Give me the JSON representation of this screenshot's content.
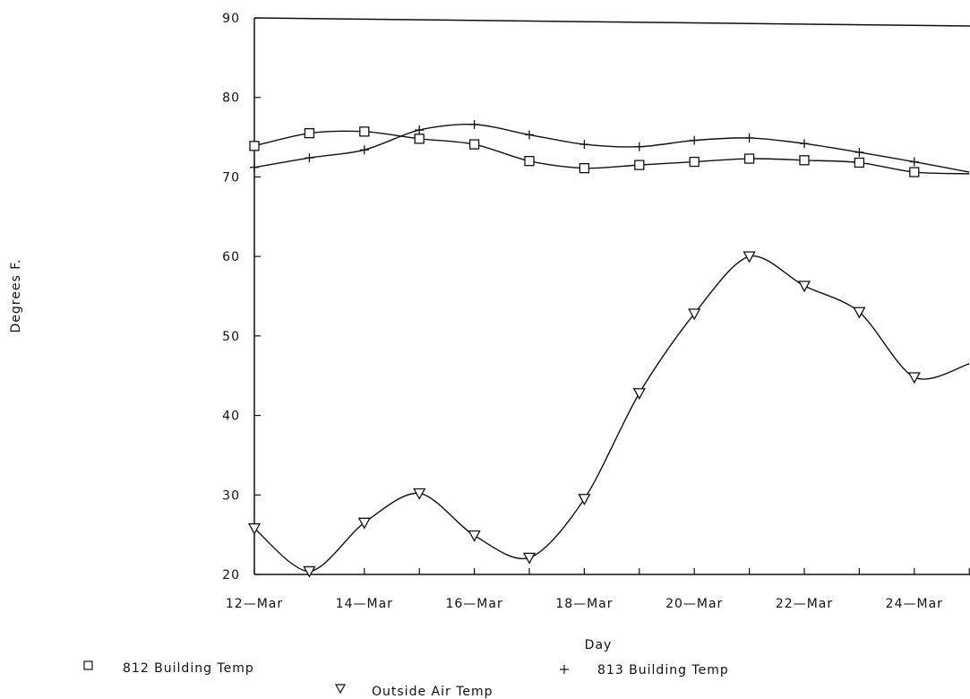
{
  "chart_data": {
    "type": "line",
    "xlabel": "Day",
    "ylabel": "Degrees F.",
    "ylim": [
      20,
      90
    ],
    "yticks": [
      "20",
      "30",
      "40",
      "50",
      "60",
      "70",
      "80",
      "90"
    ],
    "x": [
      "12-Mar",
      "13-Mar",
      "14-Mar",
      "15-Mar",
      "16-Mar",
      "17-Mar",
      "18-Mar",
      "19-Mar",
      "20-Mar",
      "21-Mar",
      "22-Mar",
      "23-Mar",
      "24-Mar",
      "25-Mar"
    ],
    "xtick_labels": [
      "12—Mar",
      "14—Mar",
      "16—Mar",
      "18—Mar",
      "20—Mar",
      "22—Mar",
      "24—Mar"
    ],
    "grid": false,
    "legend_position": "bottom",
    "series": [
      {
        "name": "812 Building Temp",
        "marker": "square",
        "values": [
          73.9,
          75.5,
          75.7,
          74.8,
          74.1,
          72.0,
          71.1,
          71.5,
          71.9,
          72.3,
          72.1,
          71.8,
          70.6,
          70.4
        ]
      },
      {
        "name": "813 Building Temp",
        "marker": "plus",
        "values": [
          71.2,
          72.4,
          73.4,
          75.9,
          76.6,
          75.3,
          74.1,
          73.8,
          74.6,
          74.9,
          74.2,
          73.1,
          71.9,
          70.6
        ]
      },
      {
        "name": "Outside Air Temp",
        "marker": "triangle-down",
        "values": [
          25.8,
          20.4,
          26.5,
          30.2,
          24.9,
          22.1,
          29.5,
          42.8,
          52.8,
          60.0,
          56.3,
          53.0,
          44.8,
          46.5
        ]
      }
    ]
  }
}
